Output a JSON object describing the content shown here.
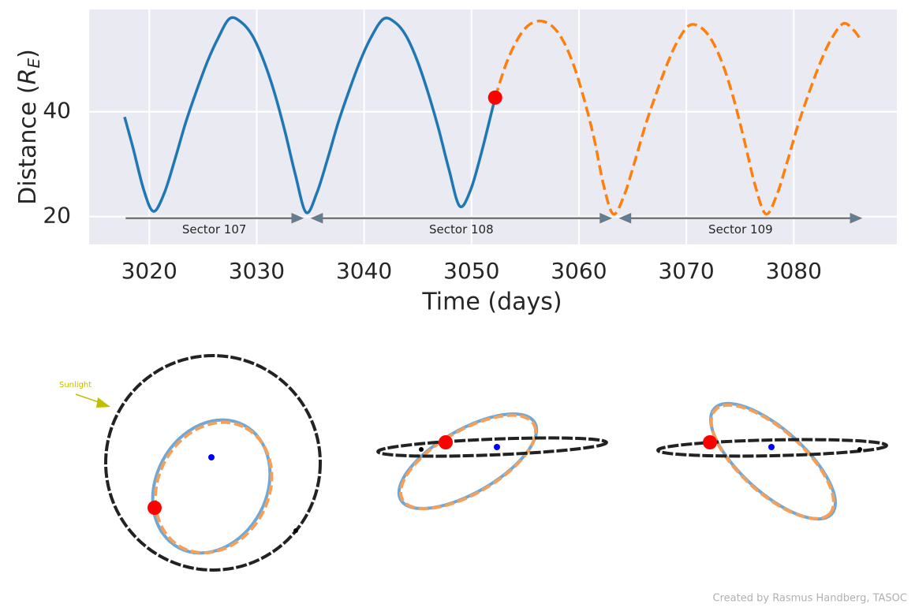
{
  "chart_data": {
    "type": "line",
    "x_label": "Time (days)",
    "y_label": [
      "Distance (",
      "R",
      "E",
      ")"
    ],
    "xlim": [
      3014.4,
      3089.6
    ],
    "ylim": [
      14.7,
      59.5
    ],
    "xticks": [
      3020,
      3030,
      3040,
      3050,
      3060,
      3070,
      3080
    ],
    "yticks": [
      20,
      40
    ],
    "grid": true,
    "series": [
      {
        "color": "#1f77b4",
        "dashed": false,
        "x": [
          3017.7,
          3018.5,
          3019.5,
          3020.4,
          3021.4,
          3022.4,
          3023.4,
          3024.4,
          3025.4,
          3026.4,
          3027.5,
          3028.6,
          3029.6,
          3030.6,
          3031.6,
          3032.6,
          3033.6,
          3034.6,
          3035.6,
          3036.6,
          3037.6,
          3038.6,
          3039.6,
          3040.6,
          3041.8,
          3042.9,
          3043.9,
          3044.9,
          3045.9,
          3046.9,
          3047.9,
          3048.9,
          3049.9,
          3050.9,
          3052.2
        ],
        "values": [
          39,
          33,
          25,
          21,
          24.5,
          31,
          38,
          44,
          49.5,
          54,
          57.8,
          57,
          54.5,
          50,
          44,
          36.5,
          28,
          20.8,
          24.5,
          31,
          38,
          44,
          49.5,
          54,
          57.7,
          57,
          54.5,
          50,
          44,
          37,
          29,
          22,
          25,
          32,
          42.7
        ]
      },
      {
        "color": "#ff7f0e",
        "dashed": true,
        "x": [
          3052.2,
          3053.2,
          3054.2,
          3055.2,
          3056.3,
          3057.4,
          3058.4,
          3059.4,
          3060.4,
          3061.4,
          3062.3,
          3063.2,
          3064.2,
          3065.2,
          3066.2,
          3067.2,
          3068.2,
          3069.2,
          3070.3,
          3071.4,
          3072.4,
          3073.4,
          3074.4,
          3075.4,
          3076.4,
          3077.4,
          3078.4,
          3079.4,
          3080.4,
          3081.4,
          3082.4,
          3083.4,
          3084.6,
          3085.6,
          3086.3
        ],
        "values": [
          42.7,
          49,
          53.5,
          56.3,
          57.3,
          56.5,
          54,
          49.5,
          43,
          35,
          26,
          20.5,
          24,
          30.5,
          37.5,
          43.5,
          49,
          53.5,
          56.5,
          56,
          53.5,
          49,
          42.5,
          34.5,
          26,
          20.5,
          24,
          30.5,
          37.5,
          43.5,
          49,
          53.5,
          56.8,
          55.5,
          53.5
        ]
      }
    ],
    "current_position": {
      "x": 3052.2,
      "y": 42.7,
      "color": "#ff0000"
    },
    "sectors": [
      {
        "label": "Sector 107",
        "start": 3017.8,
        "end": 3034.3,
        "y": 19.7
      },
      {
        "label": "Sector 108",
        "start": 3035.1,
        "end": 3063.0,
        "y": 19.7
      },
      {
        "label": "Sector 109",
        "start": 3063.8,
        "end": 3086.3,
        "y": 19.7
      }
    ]
  },
  "orbit_view": {
    "sunlight_label": "Sunlight"
  },
  "credit": "Created by Rasmus Handberg, TASOC"
}
